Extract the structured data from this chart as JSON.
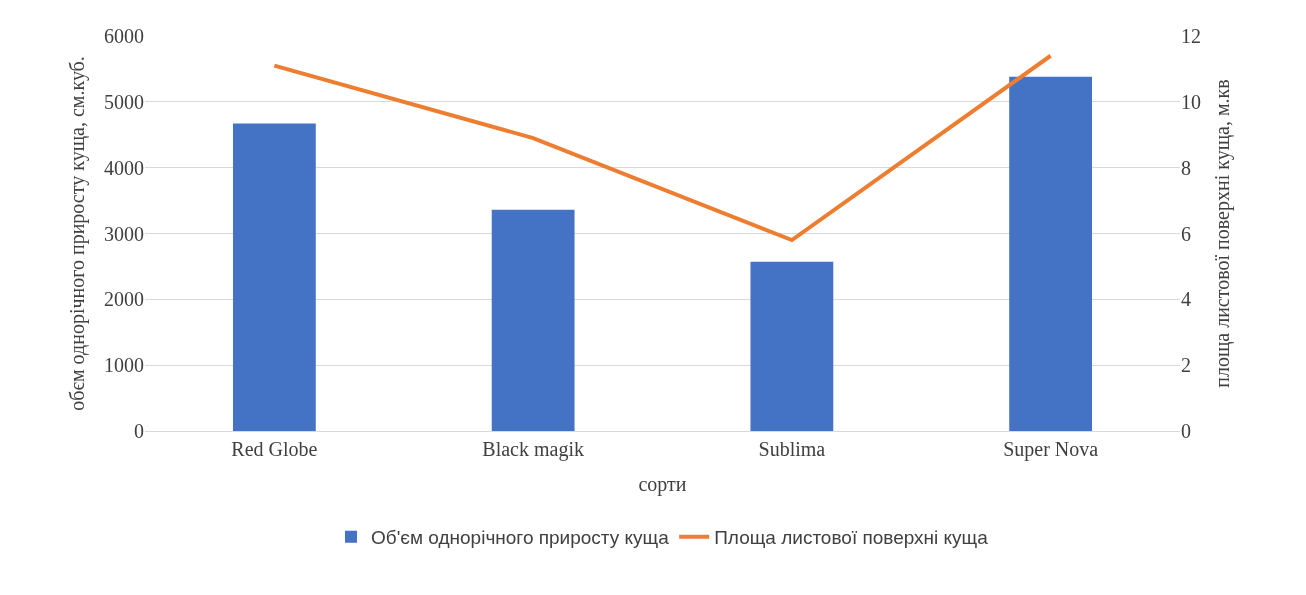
{
  "chart_data": {
    "type": "bar",
    "categories": [
      "Red Globe",
      "Black magik",
      "Sublima",
      "Super Nova"
    ],
    "series": [
      {
        "name": "Об'єм однорічного приросту куща",
        "color": "#4472c4",
        "values": [
          4670,
          3360,
          2570,
          5380
        ]
      },
      {
        "name": "Площа листової поверхні куща",
        "color": "#ed7d31",
        "type": "line",
        "axis": "y2",
        "values": [
          11.1,
          8.9,
          5.8,
          11.4
        ]
      }
    ],
    "xlabel": "сорти",
    "ylabel": "обєм однорічного приросту куща, см.куб.",
    "y2label": "площа листової поверхні куща, м.кв",
    "ylim": [
      0,
      6000
    ],
    "yticks": [
      0,
      1000,
      2000,
      3000,
      4000,
      5000,
      6000
    ],
    "y2lim": [
      0,
      12
    ],
    "y2ticks": [
      0,
      2,
      4,
      6,
      8,
      10,
      12
    ],
    "grid": "y",
    "legend": "bottom"
  }
}
